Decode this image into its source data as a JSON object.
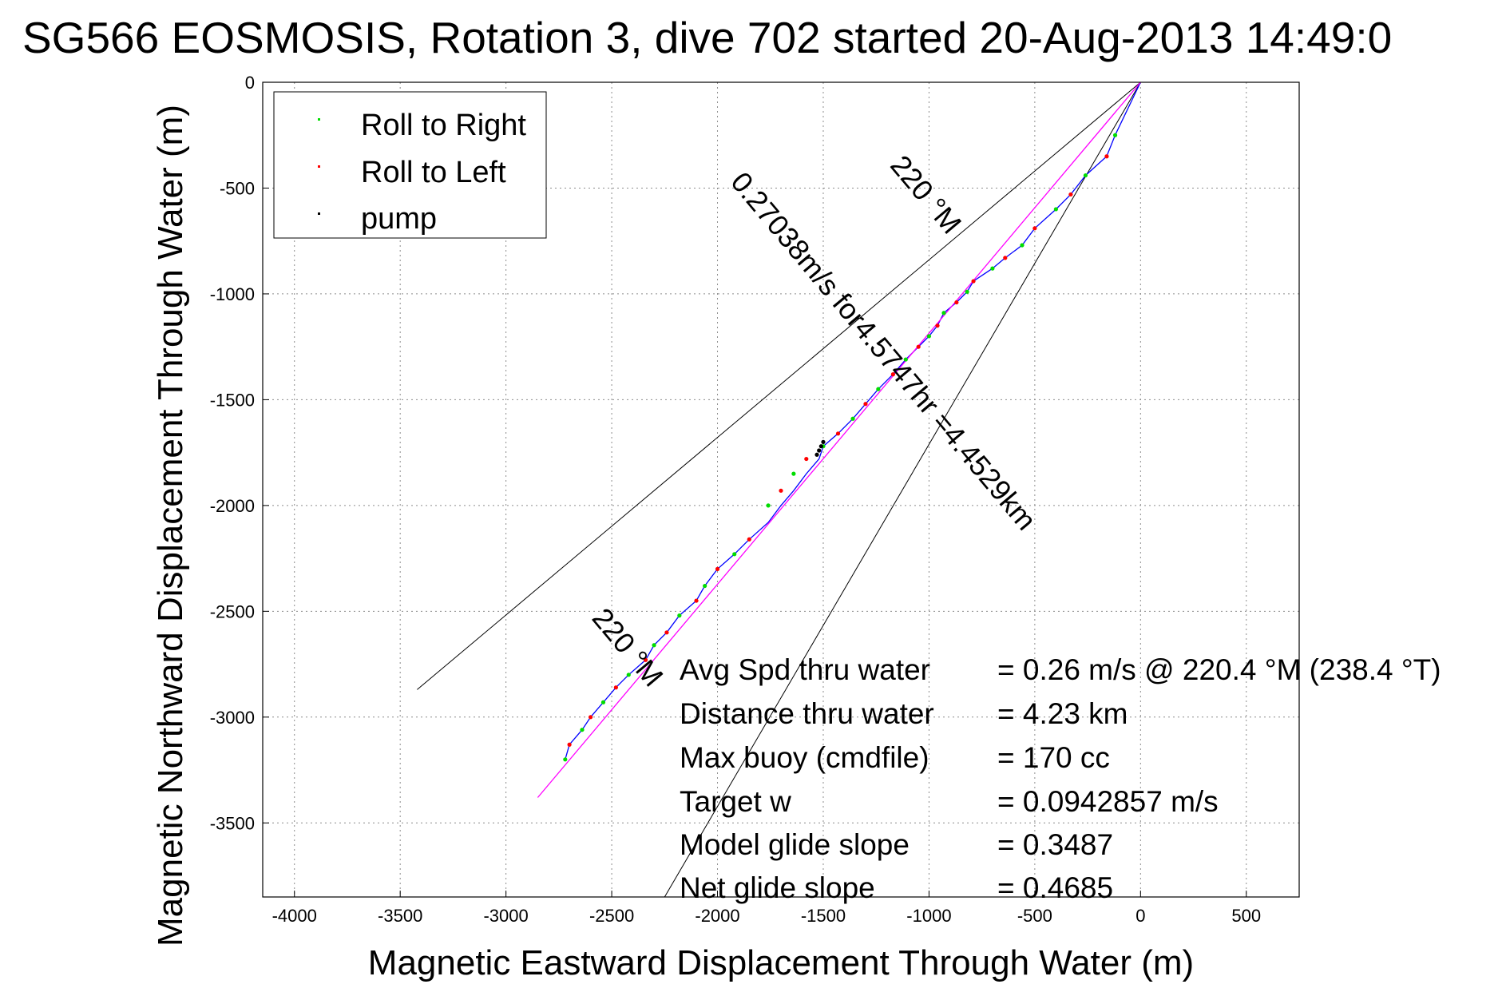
{
  "chart_data": {
    "type": "line",
    "title": "SG566 EOSMOSIS, Rotation 3, dive 702 started 20-Aug-2013 14:49:0",
    "xlabel": "Magnetic Eastward Displacement Through Water (m)",
    "ylabel": "Magnetic Northward Displacement Through Water (m)",
    "xlim": [
      -4150,
      750
    ],
    "ylim": [
      -3850,
      0
    ],
    "xticks": [
      -4000,
      -3500,
      -3000,
      -2500,
      -2000,
      -1500,
      -1000,
      -500,
      0,
      500
    ],
    "yticks": [
      0,
      -500,
      -1000,
      -1500,
      -2000,
      -2500,
      -3000,
      -3500
    ],
    "grid": true,
    "legend_position": "top-left",
    "legend": [
      {
        "name": "Roll to Right",
        "color": "#00dd00"
      },
      {
        "name": "Roll to Left",
        "color": "#ff0000"
      },
      {
        "name": "pump",
        "color": "#000000"
      }
    ],
    "series": [
      {
        "name": "track",
        "color": "#0000ff",
        "x": [
          0,
          -120,
          -160,
          -260,
          -330,
          -400,
          -500,
          -560,
          -640,
          -700,
          -790,
          -820,
          -870,
          -930,
          -960,
          -1000,
          -1050,
          -1110,
          -1170,
          -1240,
          -1300,
          -1360,
          -1430,
          -1500,
          -1520,
          -1580,
          -1640,
          -1700,
          -1760,
          -1850,
          -1920,
          -2000,
          -2060,
          -2100,
          -2180,
          -2240,
          -2300,
          -2340,
          -2420,
          -2480,
          -2540,
          -2600,
          -2640,
          -2700,
          -2720
        ],
        "y": [
          0,
          -250,
          -350,
          -440,
          -530,
          -600,
          -690,
          -770,
          -830,
          -880,
          -940,
          -990,
          -1040,
          -1090,
          -1150,
          -1200,
          -1250,
          -1310,
          -1380,
          -1450,
          -1520,
          -1590,
          -1660,
          -1720,
          -1780,
          -1850,
          -1930,
          -2000,
          -2080,
          -2160,
          -2230,
          -2300,
          -2380,
          -2450,
          -2520,
          -2600,
          -2660,
          -2730,
          -2800,
          -2860,
          -2930,
          -3000,
          -3060,
          -3130,
          -3200
        ]
      },
      {
        "name": "heading-line",
        "color": "#ff00ff",
        "x": [
          0,
          -2850
        ],
        "y": [
          0,
          -3380
        ]
      }
    ],
    "roll_right_points": {
      "x": [
        -120,
        -260,
        -400,
        -560,
        -700,
        -820,
        -930,
        -1000,
        -1110,
        -1240,
        -1360,
        -1500,
        -1640,
        -1760,
        -1920,
        -2060,
        -2180,
        -2300,
        -2420,
        -2540,
        -2640,
        -2720
      ],
      "y": [
        -250,
        -440,
        -600,
        -770,
        -880,
        -990,
        -1090,
        -1200,
        -1310,
        -1450,
        -1590,
        -1720,
        -1850,
        -2000,
        -2230,
        -2380,
        -2520,
        -2660,
        -2800,
        -2930,
        -3060,
        -3200
      ]
    },
    "roll_left_points": {
      "x": [
        -160,
        -330,
        -500,
        -640,
        -790,
        -870,
        -960,
        -1050,
        -1170,
        -1300,
        -1430,
        -1580,
        -1700,
        -1850,
        -2000,
        -2100,
        -2240,
        -2340,
        -2480,
        -2600,
        -2700
      ],
      "y": [
        -350,
        -530,
        -690,
        -830,
        -940,
        -1040,
        -1150,
        -1250,
        -1380,
        -1520,
        -1660,
        -1780,
        -1930,
        -2160,
        -2300,
        -2450,
        -2600,
        -2730,
        -2860,
        -3000,
        -3130
      ]
    },
    "pump_points": {
      "x": [
        -1500,
        -1510,
        -1520,
        -1530
      ],
      "y": [
        -1700,
        -1720,
        -1740,
        -1760
      ]
    },
    "guide_lines": [
      {
        "x": [
          0,
          -3420
        ],
        "y": [
          0,
          -2870
        ]
      },
      {
        "x": [
          0,
          -2250
        ],
        "y": [
          0,
          -3850
        ]
      }
    ],
    "annotations": [
      {
        "text": "220 °M",
        "x": -1050,
        "y": -560,
        "angle": 50
      },
      {
        "text": "0.27038m/s for4.5747hr =4.4529km",
        "x": -1250,
        "y": -1300,
        "angle": 50
      },
      {
        "text": "220 °M",
        "x": -2460,
        "y": -2700,
        "angle": 50
      }
    ],
    "stats": [
      {
        "label": "Avg Spd thru water",
        "value": "=  0.26 m/s @ 220.4 °M (238.4 °T)"
      },
      {
        "label": "Distance thru water",
        "value": "=  4.23 km"
      },
      {
        "label": "Max buoy (cmdfile)",
        "value": "= 170 cc"
      },
      {
        "label": "Target w",
        "value": "= 0.0942857 m/s"
      },
      {
        "label": "Model glide slope",
        "value": "= 0.3487"
      },
      {
        "label": "Net glide slope",
        "value": "= 0.4685"
      }
    ]
  }
}
